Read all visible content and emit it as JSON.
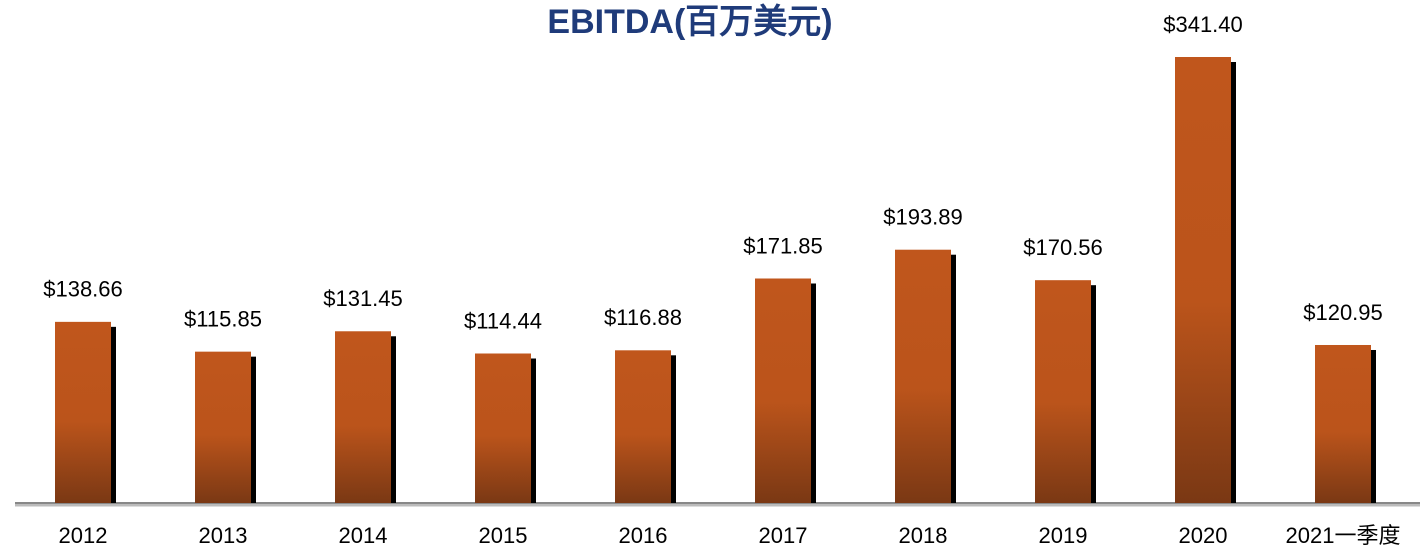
{
  "chart_data": {
    "type": "bar",
    "title": "EBITDA(百万美元)",
    "categories": [
      "2012",
      "2013",
      "2014",
      "2015",
      "2016",
      "2017",
      "2018",
      "2019",
      "2020",
      "2021一季度"
    ],
    "values": [
      138.66,
      115.85,
      131.45,
      114.44,
      116.88,
      171.85,
      193.89,
      170.56,
      341.4,
      120.95
    ],
    "value_labels": [
      "$138.66",
      "$115.85",
      "$131.45",
      "$114.44",
      "$116.88",
      "$171.85",
      "$193.89",
      "$170.56",
      "$341.40",
      "$120.95"
    ],
    "color": "#c0561c",
    "ylim": [
      0,
      341.4
    ]
  }
}
